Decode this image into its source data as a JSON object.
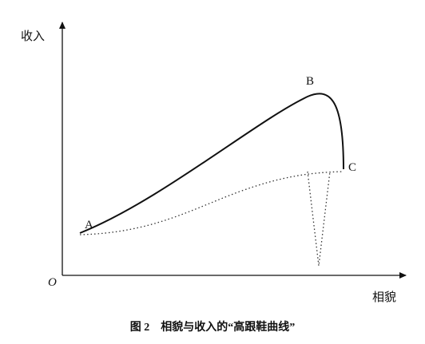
{
  "axes": {
    "y_label": "收入",
    "x_label": "相貌",
    "origin": "O"
  },
  "points": {
    "a": "A",
    "b": "B",
    "c": "C"
  },
  "caption": "图 2　相貌与收入的“高跟鞋曲线”"
}
